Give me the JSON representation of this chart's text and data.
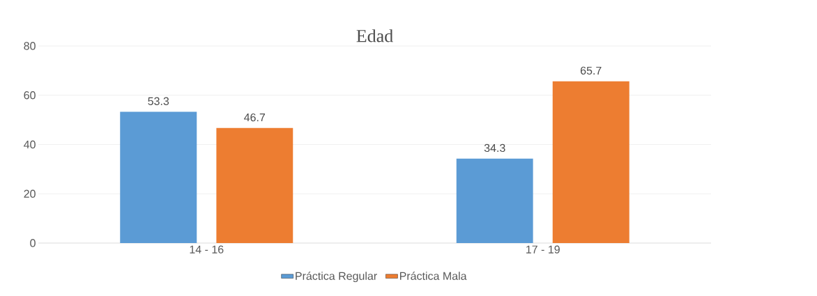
{
  "chart_data": {
    "type": "bar",
    "title": "Edad",
    "categories": [
      "14 - 16",
      "17 - 19"
    ],
    "series": [
      {
        "name": "Práctica Regular",
        "color": "#5b9bd5",
        "values": [
          53.3,
          34.3
        ]
      },
      {
        "name": "Práctica Mala",
        "color": "#ed7d31",
        "values": [
          46.7,
          65.7
        ]
      }
    ],
    "ylim": [
      0,
      80
    ],
    "yticks": [
      0,
      20,
      40,
      60,
      80
    ],
    "grid": "y",
    "legend": "bottom",
    "data_labels": true
  }
}
